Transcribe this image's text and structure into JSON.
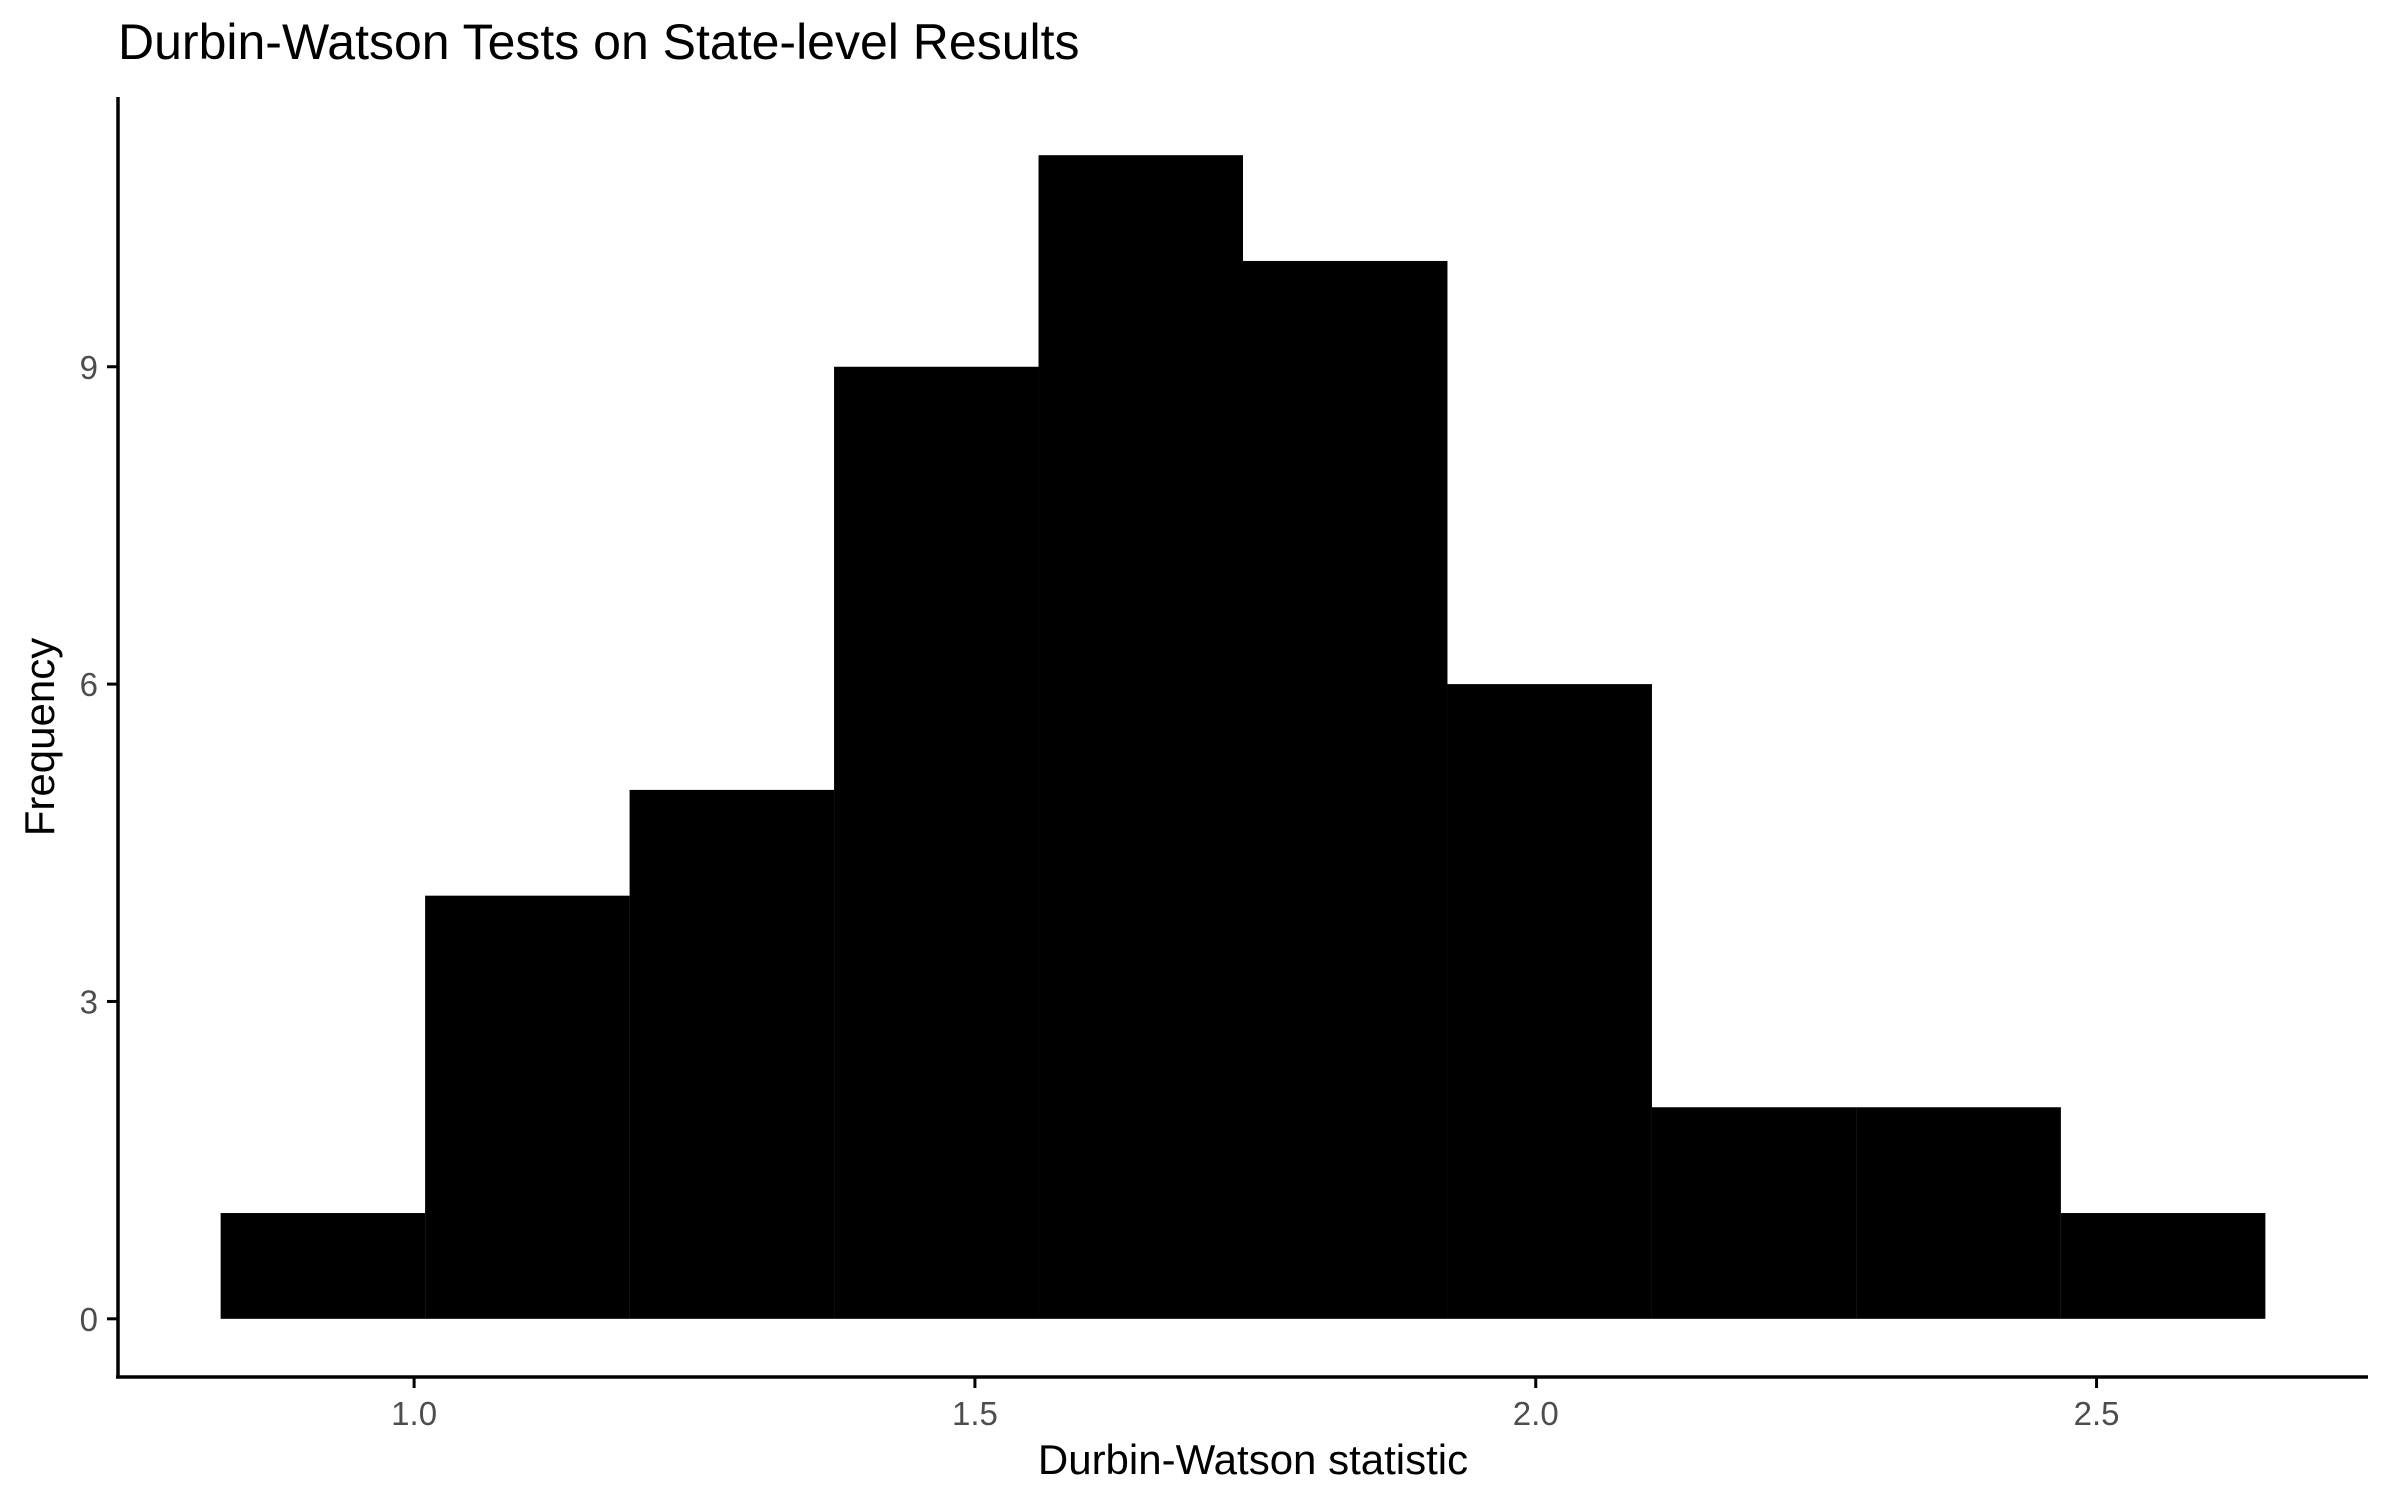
{
  "chart_data": {
    "type": "bar",
    "title": "Durbin-Watson Tests on State-level Results",
    "xlabel": "Durbin-Watson statistic",
    "ylabel": "Frequency",
    "bins": [
      {
        "x0": 0.8275,
        "x1": 1.0098,
        "count": 1
      },
      {
        "x0": 1.0098,
        "x1": 1.1921,
        "count": 4
      },
      {
        "x0": 1.1921,
        "x1": 1.3744,
        "count": 5
      },
      {
        "x0": 1.3744,
        "x1": 1.5567,
        "count": 9
      },
      {
        "x0": 1.5567,
        "x1": 1.739,
        "count": 11
      },
      {
        "x0": 1.739,
        "x1": 1.9213,
        "count": 10
      },
      {
        "x0": 1.9213,
        "x1": 2.1036,
        "count": 6
      },
      {
        "x0": 2.1036,
        "x1": 2.2859,
        "count": 2
      },
      {
        "x0": 2.2859,
        "x1": 2.4682,
        "count": 2
      },
      {
        "x0": 2.4682,
        "x1": 2.6505,
        "count": 1
      }
    ],
    "xlim": [
      0.736,
      2.742
    ],
    "ylim": [
      -0.55,
      11.55
    ],
    "x_ticks": [
      1.0,
      1.5,
      2.0,
      2.5
    ],
    "x_tick_labels": [
      "1.0",
      "1.5",
      "2.0",
      "2.5"
    ],
    "y_ticks": [
      0,
      3,
      6,
      9
    ],
    "y_tick_labels": [
      "0",
      "3",
      "6",
      "9"
    ],
    "grid": false,
    "legend": "none",
    "bar_color": "#000000",
    "axis_color": "#000000",
    "tick_label_color": "#4d4d4d"
  }
}
